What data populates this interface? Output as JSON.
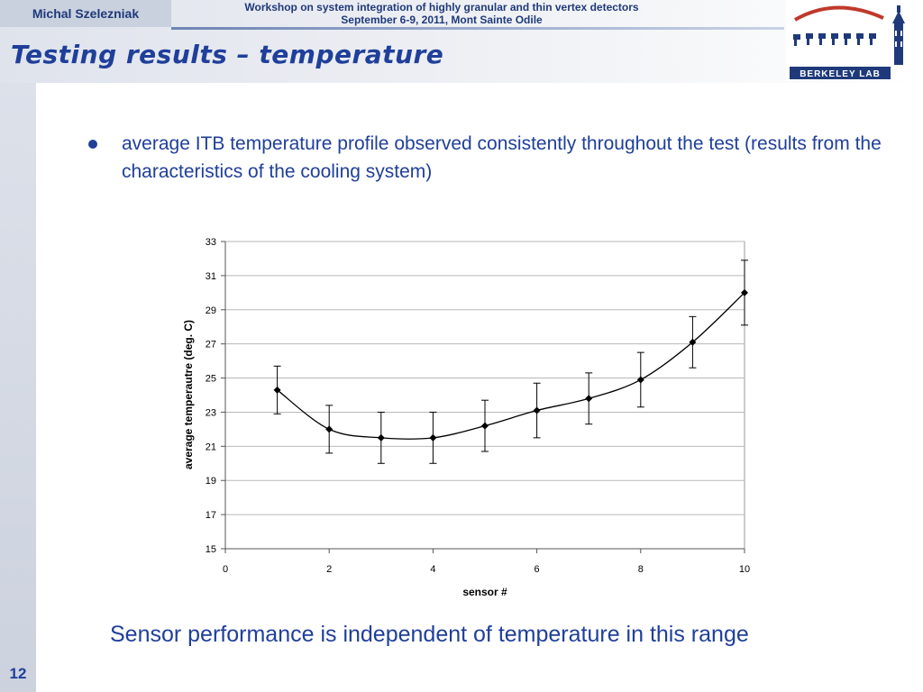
{
  "header": {
    "author": "Michal Szelezniak",
    "conference_line1": "Workshop on system integration of highly granular and thin vertex detectors",
    "conference_line2": "September 6-9, 2011, Mont Sainte Odile",
    "logo_text": "BERKELEY LAB"
  },
  "slide": {
    "title": "Testing results – temperature",
    "bullet": "average ITB temperature profile observed consistently throughout the test (results from the characteristics of the cooling system)",
    "conclusion": "Sensor performance is independent of temperature in this range",
    "page_number": "12"
  },
  "colors": {
    "title": "#1f3f9a",
    "header_text": "#1f3a7a",
    "accent_band": "#c9d0de",
    "logo_red": "#c0392b"
  },
  "chart_data": {
    "type": "scatter",
    "xlabel": "sensor #",
    "ylabel": "average temperautre (deg. C)",
    "xlim": [
      0,
      10
    ],
    "ylim": [
      15,
      33
    ],
    "x_ticks": [
      0,
      2,
      4,
      6,
      8,
      10
    ],
    "y_ticks": [
      15,
      17,
      19,
      21,
      23,
      25,
      27,
      29,
      31,
      33
    ],
    "grid": "horizontal",
    "smooth_line": true,
    "marker": "diamond",
    "series": [
      {
        "x": [
          1,
          2,
          3,
          4,
          5,
          6,
          7,
          8,
          9,
          10
        ],
        "y": [
          24.3,
          22.0,
          21.5,
          21.5,
          22.2,
          23.1,
          23.8,
          24.9,
          27.1,
          30.0
        ],
        "error": [
          1.4,
          1.4,
          1.5,
          1.5,
          1.5,
          1.6,
          1.5,
          1.6,
          1.5,
          1.9
        ]
      }
    ]
  }
}
